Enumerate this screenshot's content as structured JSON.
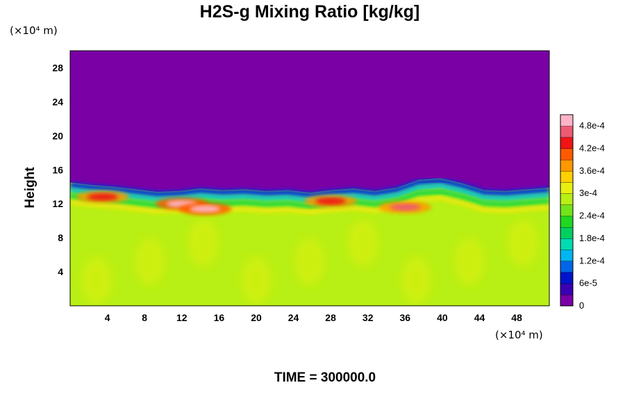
{
  "chart_data": {
    "type": "heatmap",
    "title": "H2S-g Mixing Ratio [kg/kg]",
    "time_label": "TIME = 300000.0",
    "ylabel": "Height",
    "x_unit_label": "(×10⁴ m)",
    "y_unit_label": "(×10⁴ m)",
    "xlim": [
      0,
      51.5
    ],
    "ylim": [
      0,
      30
    ],
    "x_ticks": [
      4,
      8,
      12,
      16,
      20,
      24,
      28,
      32,
      36,
      40,
      44,
      48
    ],
    "y_ticks": [
      4,
      8,
      12,
      16,
      20,
      24,
      28
    ],
    "colorbar": {
      "min": 0,
      "max": 0.00051,
      "tick_values": [
        0,
        6e-05,
        0.00012,
        0.00018,
        0.00024,
        0.0003,
        0.00036,
        0.00042,
        0.00048
      ],
      "tick_labels": [
        "0",
        "6e-5",
        "1.2e-4",
        "1.8e-4",
        "2.4e-4",
        "3e-4",
        "3.6e-4",
        "4.2e-4",
        "4.8e-4"
      ],
      "colors": [
        "#7a00a6",
        "#3a00b4",
        "#0014cc",
        "#0066e8",
        "#00b6f0",
        "#00dcb0",
        "#00d060",
        "#20d820",
        "#72e41a",
        "#b8ef14",
        "#e8f010",
        "#ffd000",
        "#ff9800",
        "#ff5a00",
        "#f01414",
        "#ee5a72",
        "#ffb4c8"
      ]
    },
    "field_summary": {
      "upper_value": 0,
      "lower_value": 0.00034,
      "interface_height": [
        14.5,
        14.2,
        14.0,
        13.7,
        13.4,
        13.5,
        13.8,
        13.6,
        13.7,
        13.5,
        13.6,
        13.3,
        13.6,
        13.8,
        13.5,
        13.9,
        14.8,
        15.0,
        14.4,
        13.6,
        13.5,
        13.7,
        13.9
      ],
      "hot_spots": [
        {
          "x": 12.0,
          "y": 12.0,
          "value": 0.00049
        },
        {
          "x": 14.5,
          "y": 11.4,
          "value": 0.00048
        },
        {
          "x": 28.0,
          "y": 12.3,
          "value": 0.00044
        },
        {
          "x": 36.0,
          "y": 11.6,
          "value": 0.00047
        },
        {
          "x": 3.5,
          "y": 12.8,
          "value": 0.00045
        }
      ]
    }
  }
}
